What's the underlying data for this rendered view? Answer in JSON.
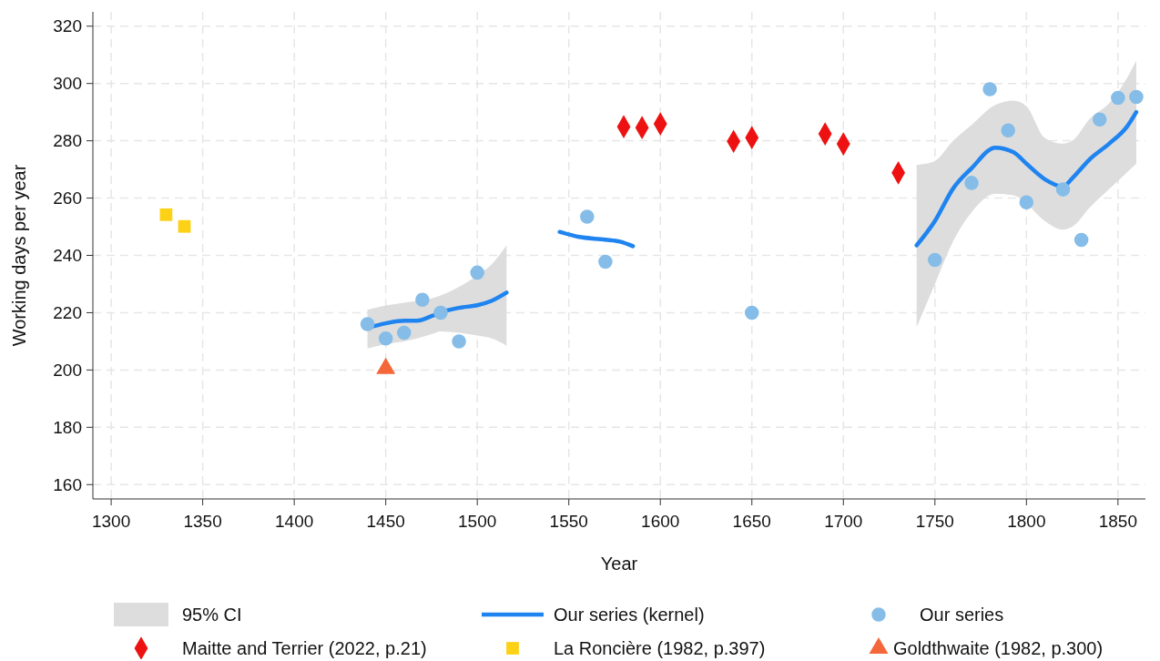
{
  "chart_data": {
    "type": "scatter",
    "xlabel": "Year",
    "ylabel": "Working days per year",
    "xlim": [
      1290,
      1865
    ],
    "ylim": [
      155,
      325
    ],
    "xticks": [
      1300,
      1350,
      1400,
      1450,
      1500,
      1550,
      1600,
      1650,
      1700,
      1750,
      1800,
      1850
    ],
    "yticks": [
      160,
      180,
      200,
      220,
      240,
      260,
      280,
      300,
      320
    ],
    "grid": true,
    "legend": "bottom",
    "annotations": [
      "95% CI"
    ],
    "series": [
      {
        "name": "Our series (kernel)",
        "type": "line",
        "color": "#1f84f0",
        "marker": "none",
        "x": [
          1440,
          1450,
          1460,
          1467,
          1475,
          1480,
          1490,
          1500,
          1508,
          1516,
          1530,
          1545,
          1555,
          1570,
          1578,
          1585,
          1650,
          1740,
          1750,
          1760,
          1770,
          1783,
          1793,
          1800,
          1810,
          1820,
          1825,
          1835,
          1845,
          1855,
          1860
        ],
        "values": [
          214.7,
          216.3,
          217.2,
          217.2,
          218.8,
          220.1,
          221.7,
          222.6,
          224.2,
          227,
          null,
          248.2,
          246.5,
          245.5,
          244.8,
          243.2,
          null,
          243.5,
          252,
          263.4,
          270.4,
          277.6,
          276,
          272,
          266.6,
          264,
          266.9,
          273.8,
          278.9,
          285,
          290
        ],
        "lower": [
          207.5,
          209,
          210,
          211,
          212.5,
          213.5,
          213,
          212,
          211,
          208.5,
          null,
          null,
          null,
          null,
          null,
          null,
          null,
          215,
          230,
          245,
          255,
          261.5,
          261,
          258,
          252,
          249,
          250,
          257,
          263,
          269,
          272
        ],
        "upper": [
          221,
          222.5,
          223.5,
          224,
          225,
          226,
          229,
          233,
          237,
          243.5,
          null,
          null,
          null,
          null,
          null,
          null,
          null,
          271.5,
          273,
          280,
          285.5,
          292.5,
          294,
          292,
          281,
          279,
          280,
          288,
          293,
          302,
          308
        ]
      },
      {
        "name": "Our series",
        "color": "#85bde8",
        "marker": "circle",
        "x": [
          1440,
          1450,
          1460,
          1470,
          1480,
          1490,
          1500,
          1560,
          1570,
          1650,
          1750,
          1770,
          1780,
          1790,
          1800,
          1820,
          1830,
          1840,
          1850,
          1860
        ],
        "values": [
          216,
          211,
          213,
          224.5,
          220,
          210,
          234,
          253.5,
          237.8,
          220,
          238.4,
          265.3,
          298,
          283.6,
          258.5,
          263,
          245.4,
          287.4,
          295,
          295.3
        ]
      },
      {
        "name": "Maitte and Terrier (2022, p.21)",
        "color": "#ee1111",
        "marker": "diamond",
        "x": [
          1580,
          1590,
          1600,
          1640,
          1650,
          1690,
          1700,
          1730
        ],
        "values": [
          284.9,
          284.6,
          285.9,
          279.8,
          281.1,
          282.4,
          278.9,
          268.8
        ]
      },
      {
        "name": "La Roncière (1982, p.397)",
        "color": "#fcd116",
        "marker": "square",
        "x": [
          1330,
          1340
        ],
        "values": [
          254.2,
          250.1
        ]
      },
      {
        "name": "Goldthwaite (1982, p.300)",
        "color": "#f4673a",
        "marker": "triangle",
        "x": [
          1450
        ],
        "values": [
          200.5
        ]
      }
    ]
  }
}
